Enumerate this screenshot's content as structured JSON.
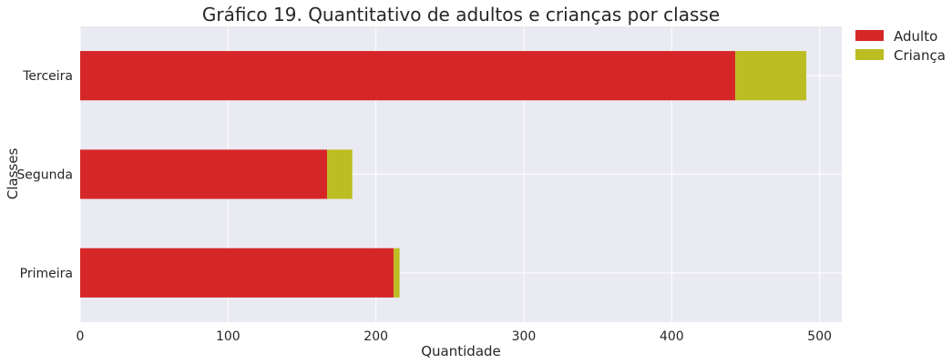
{
  "chart_data": {
    "type": "bar",
    "orientation": "horizontal",
    "stacked": true,
    "title": "Gráfico 19. Quantitativo de adultos e crianças por classe",
    "xlabel": "Quantidade",
    "ylabel": "Classes",
    "categories": [
      "Primeira",
      "Segunda",
      "Terceira"
    ],
    "series": [
      {
        "name": "Adulto",
        "color": "#d62728",
        "values": [
          212,
          167,
          443
        ]
      },
      {
        "name": "Criança",
        "color": "#bcbd22",
        "values": [
          4,
          17,
          48
        ]
      }
    ],
    "xlim": [
      0,
      515
    ],
    "xticks": [
      0,
      100,
      200,
      300,
      400,
      500
    ],
    "grid": true,
    "legend_position": "outside-top-right"
  },
  "colors": {
    "plot_background": "#eaeaf2",
    "grid": "#ffffff"
  }
}
